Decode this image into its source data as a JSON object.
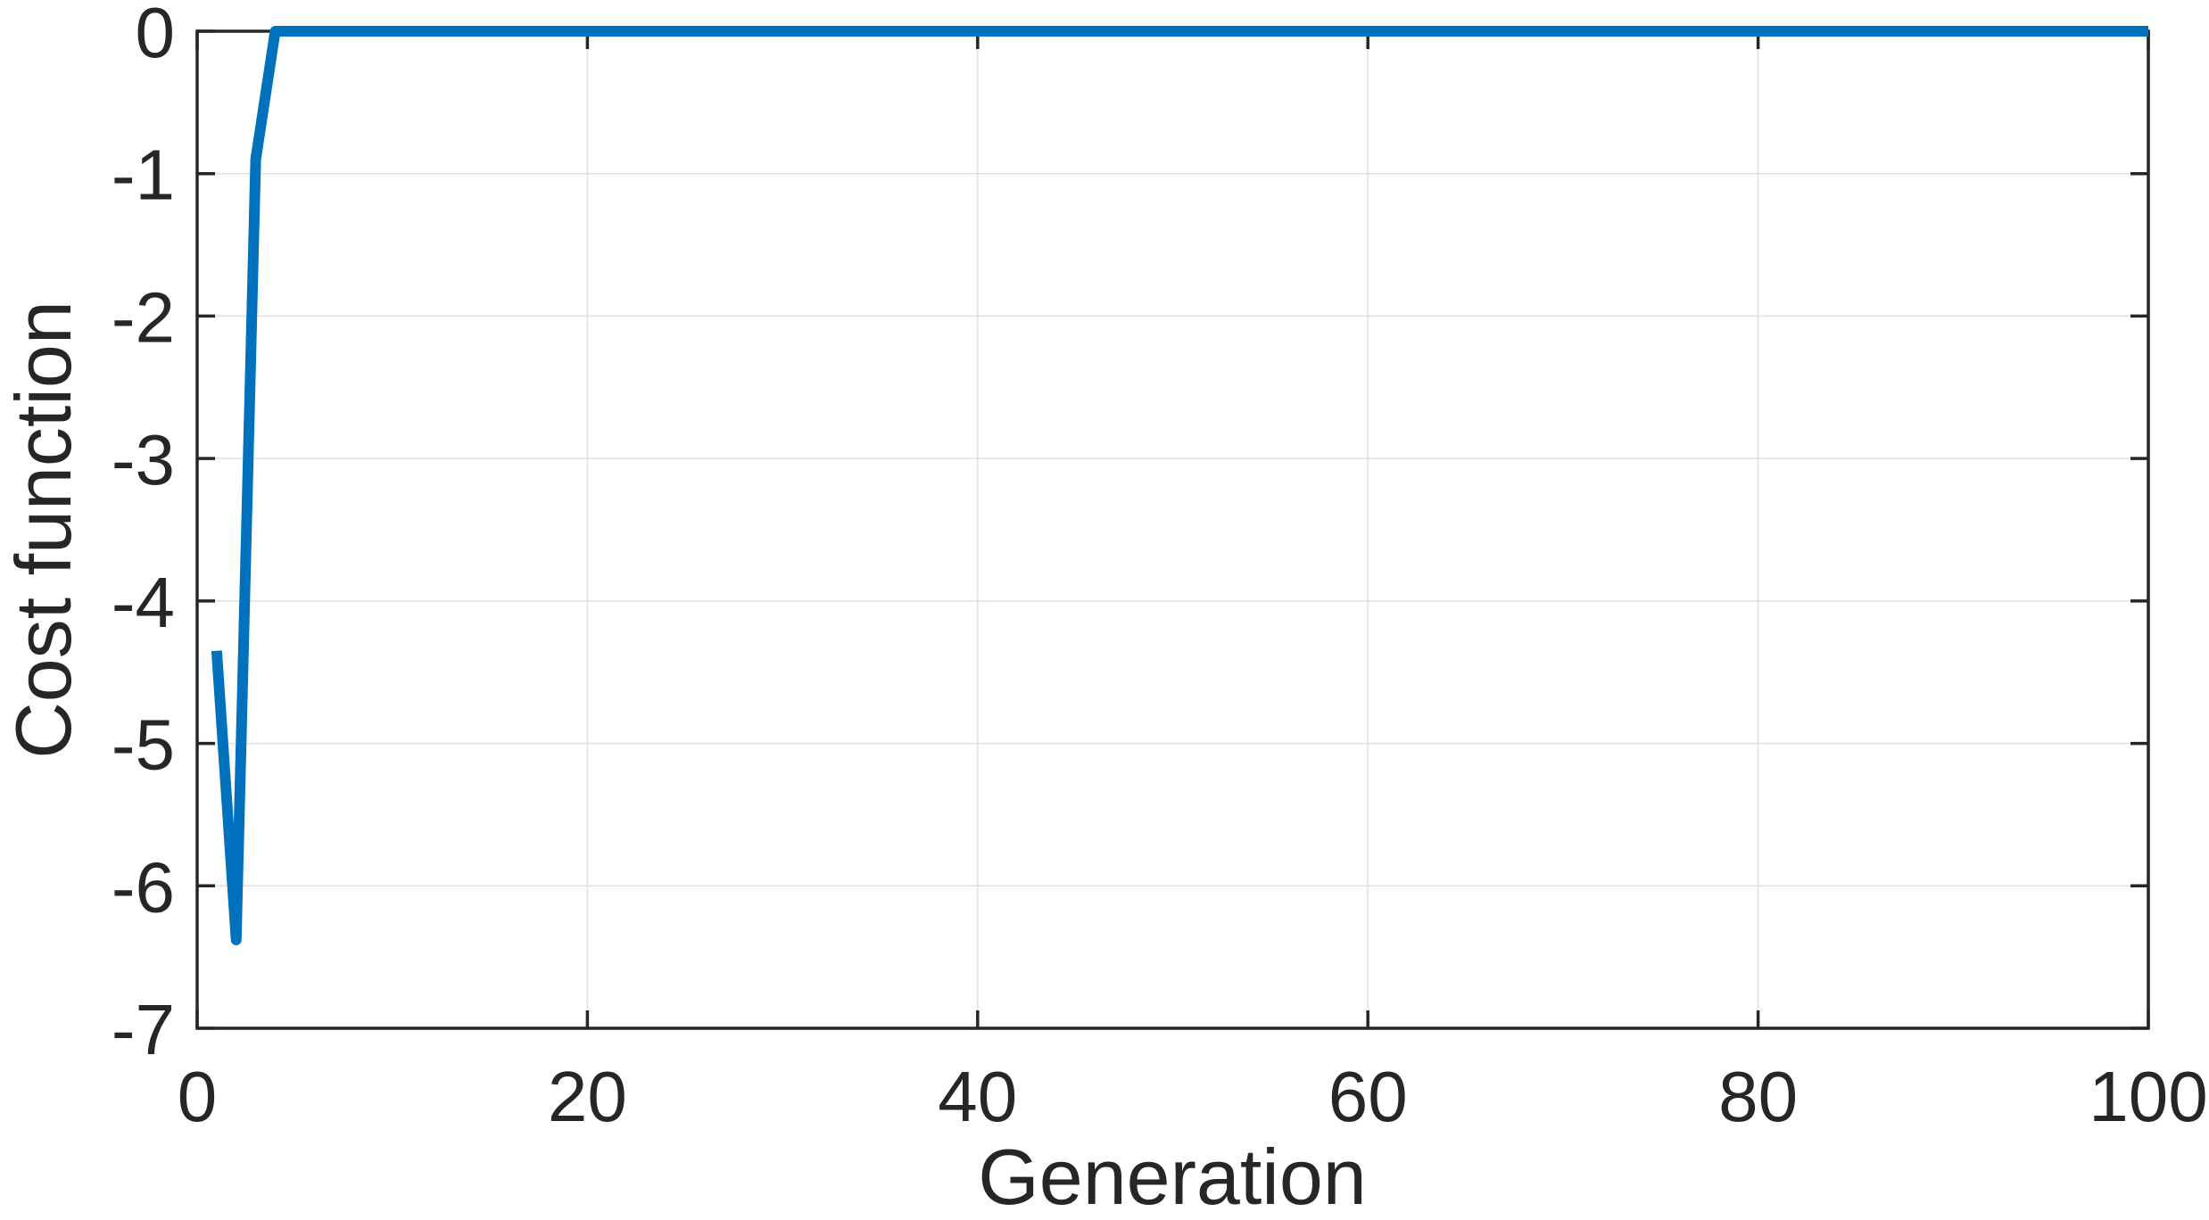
{
  "figure": {
    "background": "#ffffff",
    "description": "MATLAB-style convergence plot of a cost function over generations"
  },
  "chart_data": {
    "type": "line",
    "title": "",
    "xlabel": "Generation",
    "ylabel": "Cost function",
    "xlim": [
      0,
      100
    ],
    "ylim": [
      -7,
      0
    ],
    "x_ticks": [
      0,
      20,
      40,
      60,
      80,
      100
    ],
    "x_tick_labels": [
      "0",
      "20",
      "40",
      "60",
      "80",
      "100"
    ],
    "y_ticks": [
      0,
      -1,
      -2,
      -3,
      -4,
      -5,
      -6,
      -7
    ],
    "y_tick_labels": [
      "0",
      "-1",
      "-2",
      "-3",
      "-4",
      "-5",
      "-6",
      "-7"
    ],
    "grid": true,
    "box": true,
    "legend": "none",
    "series": [
      {
        "name": "Cost function",
        "x_start": 1,
        "x_step": 1,
        "values": [
          -4.35,
          -6.38,
          -0.9,
          0,
          0,
          0,
          0,
          0,
          0,
          0,
          0,
          0,
          0,
          0,
          0,
          0,
          0,
          0,
          0,
          0,
          0,
          0,
          0,
          0,
          0,
          0,
          0,
          0,
          0,
          0,
          0,
          0,
          0,
          0,
          0,
          0,
          0,
          0,
          0,
          0,
          0,
          0,
          0,
          0,
          0,
          0,
          0,
          0,
          0,
          0,
          0,
          0,
          0,
          0,
          0,
          0,
          0,
          0,
          0,
          0,
          0,
          0,
          0,
          0,
          0,
          0,
          0,
          0,
          0,
          0,
          0,
          0,
          0,
          0,
          0,
          0,
          0,
          0,
          0,
          0,
          0,
          0,
          0,
          0,
          0,
          0,
          0,
          0,
          0,
          0,
          0,
          0,
          0,
          0,
          0,
          0,
          0,
          0,
          0,
          0
        ]
      }
    ],
    "colors": {
      "line": "#0072bd",
      "axis": "#262626",
      "grid": "#e0e0e0",
      "text": "#262626",
      "background": "#ffffff"
    }
  }
}
